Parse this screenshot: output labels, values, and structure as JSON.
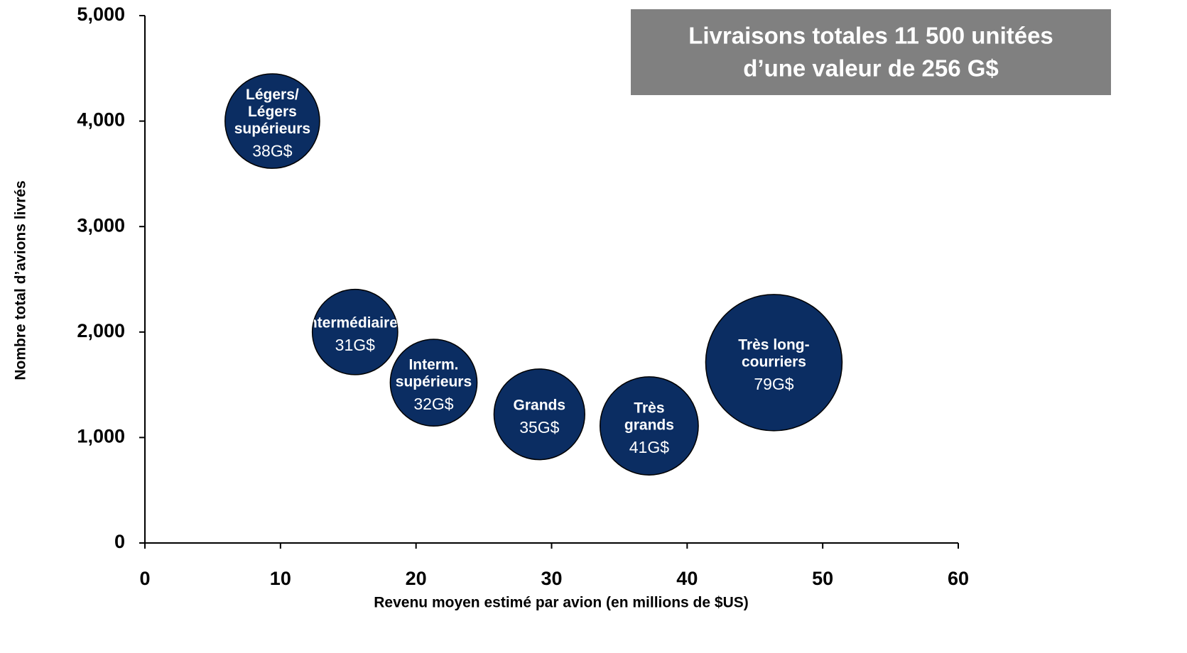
{
  "chart_data": {
    "type": "scatter",
    "annotation": [
      "Livraisons totales 11 500 unitées",
      "d’une valeur de 256 G$"
    ],
    "x_label": "Revenu moyen estimé par avion (en millions de $US)",
    "y_label": "Nombre total d’avions livrés",
    "xlim": [
      0,
      60
    ],
    "xticks": [
      0,
      10,
      20,
      30,
      40,
      50,
      60
    ],
    "ylim": [
      0,
      5000
    ],
    "yticks": [
      0,
      {
        "value": 1000,
        "label": "1,000"
      },
      {
        "value": 2000,
        "label": "2,000"
      },
      {
        "value": 3000,
        "label": "3,000"
      },
      {
        "value": 4000,
        "label": "4,000"
      },
      {
        "value": 5000,
        "label": "5,000"
      }
    ],
    "series": [
      {
        "color": "#0b2d62",
        "labels": [
          [
            "Légers/",
            "Légers",
            "supérieurs"
          ],
          [
            "Intermédiaires"
          ],
          [
            "Interm.",
            "supérieurs"
          ],
          [
            "Grands"
          ],
          [
            "Très",
            "grands"
          ],
          [
            "Très long-",
            "courriers"
          ]
        ],
        "x": [
          9.4,
          15.5,
          21.3,
          29.1,
          37.2,
          46.4
        ],
        "values": [
          4000,
          2000,
          1520,
          1220,
          1110,
          1710
        ],
        "sizes": [
          38,
          31,
          32,
          35,
          41,
          79
        ],
        "value_labels": [
          "38G$",
          "31G$",
          "32G$",
          "35G$",
          "41G$",
          "79G$"
        ]
      }
    ]
  }
}
